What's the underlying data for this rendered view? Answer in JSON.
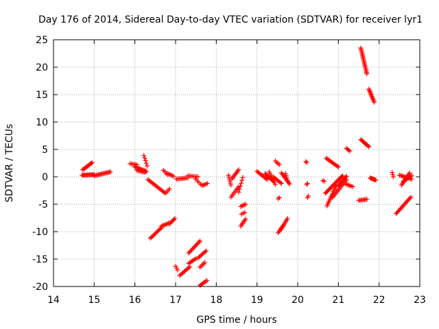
{
  "chart_data": {
    "type": "scatter",
    "title": "Day 176 of 2014, Sidereal Day-to-day VTEC variation (SDTVAR) for receiver lyr1",
    "xlabel": "GPS time / hours",
    "ylabel": "SDTVAR / TECUs",
    "xlim": [
      14,
      23
    ],
    "ylim": [
      -20,
      25
    ],
    "xticks": [
      14,
      15,
      16,
      17,
      18,
      19,
      20,
      21,
      22,
      23
    ],
    "yticks": [
      -20,
      -15,
      -10,
      -5,
      0,
      5,
      10,
      15,
      20,
      25
    ],
    "grid": true,
    "marker": "+",
    "color": "#ff0000",
    "segments": [
      {
        "start": [
          14.72,
          1.3
        ],
        "end": [
          14.95,
          2.6
        ],
        "n": 12
      },
      {
        "start": [
          14.7,
          0.3
        ],
        "end": [
          15.0,
          0.4
        ],
        "n": 14
      },
      {
        "start": [
          15.0,
          0.2
        ],
        "end": [
          15.4,
          0.9
        ],
        "n": 16
      },
      {
        "start": [
          15.88,
          2.4
        ],
        "end": [
          16.05,
          2.2
        ],
        "n": 6
      },
      {
        "start": [
          16.0,
          1.8
        ],
        "end": [
          16.28,
          1.0
        ],
        "n": 12
      },
      {
        "start": [
          16.22,
          3.9
        ],
        "end": [
          16.3,
          2.0
        ],
        "n": 5
      },
      {
        "start": [
          16.05,
          1.2
        ],
        "end": [
          16.25,
          0.8
        ],
        "n": 8
      },
      {
        "start": [
          16.32,
          -0.5
        ],
        "end": [
          16.75,
          -3.0
        ],
        "n": 16
      },
      {
        "start": [
          16.75,
          -3.0
        ],
        "end": [
          16.85,
          -2.2
        ],
        "n": 4
      },
      {
        "start": [
          16.7,
          1.2
        ],
        "end": [
          16.8,
          0.4
        ],
        "n": 4
      },
      {
        "start": [
          16.8,
          0.6
        ],
        "end": [
          16.95,
          0.1
        ],
        "n": 6
      },
      {
        "start": [
          16.38,
          -11.2
        ],
        "end": [
          16.65,
          -9.3
        ],
        "n": 12
      },
      {
        "start": [
          16.65,
          -9.0
        ],
        "end": [
          16.85,
          -8.4
        ],
        "n": 8
      },
      {
        "start": [
          16.85,
          -8.6
        ],
        "end": [
          16.98,
          -7.6
        ],
        "n": 6
      },
      {
        "start": [
          17.0,
          -16.3
        ],
        "end": [
          17.05,
          -17.0
        ],
        "n": 3
      },
      {
        "start": [
          17.1,
          -18.0
        ],
        "end": [
          17.35,
          -16.4
        ],
        "n": 10
      },
      {
        "start": [
          17.32,
          -13.9
        ],
        "end": [
          17.6,
          -11.7
        ],
        "n": 12
      },
      {
        "start": [
          17.32,
          -15.8
        ],
        "end": [
          17.5,
          -14.9
        ],
        "n": 7
      },
      {
        "start": [
          17.55,
          -14.8
        ],
        "end": [
          17.75,
          -13.5
        ],
        "n": 8
      },
      {
        "start": [
          17.6,
          -16.5
        ],
        "end": [
          17.72,
          -15.6
        ],
        "n": 5
      },
      {
        "start": [
          17.6,
          -19.8
        ],
        "end": [
          17.77,
          -18.9
        ],
        "n": 7
      },
      {
        "start": [
          17.02,
          -0.4
        ],
        "end": [
          17.3,
          -0.2
        ],
        "n": 10
      },
      {
        "start": [
          17.3,
          0.2
        ],
        "end": [
          17.55,
          0.0
        ],
        "n": 8
      },
      {
        "start": [
          17.5,
          -0.5
        ],
        "end": [
          17.65,
          -1.6
        ],
        "n": 5
      },
      {
        "start": [
          17.65,
          -1.6
        ],
        "end": [
          17.78,
          -1.2
        ],
        "n": 5
      },
      {
        "start": [
          18.3,
          0.3
        ],
        "end": [
          18.36,
          -1.5
        ],
        "n": 6
      },
      {
        "start": [
          18.38,
          -0.4
        ],
        "end": [
          18.55,
          1.3
        ],
        "n": 8
      },
      {
        "start": [
          18.36,
          -3.7
        ],
        "end": [
          18.55,
          -1.8
        ],
        "n": 8
      },
      {
        "start": [
          18.55,
          -2.8
        ],
        "end": [
          18.65,
          -0.1
        ],
        "n": 6
      },
      {
        "start": [
          18.6,
          -5.4
        ],
        "end": [
          18.72,
          -5.0
        ],
        "n": 5
      },
      {
        "start": [
          18.6,
          -9.0
        ],
        "end": [
          18.72,
          -7.7
        ],
        "n": 6
      },
      {
        "start": [
          18.62,
          -6.8
        ],
        "end": [
          18.7,
          -6.5
        ],
        "n": 3
      },
      {
        "start": [
          19.0,
          1.0
        ],
        "end": [
          19.25,
          -0.5
        ],
        "n": 10
      },
      {
        "start": [
          19.2,
          0.6
        ],
        "end": [
          19.4,
          -0.8
        ],
        "n": 10
      },
      {
        "start": [
          19.3,
          0.9
        ],
        "end": [
          19.45,
          -1.4
        ],
        "n": 8
      },
      {
        "start": [
          19.4,
          0.0
        ],
        "end": [
          19.6,
          -1.2
        ],
        "n": 8
      },
      {
        "start": [
          19.45,
          2.9
        ],
        "end": [
          19.55,
          2.2
        ],
        "n": 4
      },
      {
        "start": [
          19.52,
          -4.0
        ],
        "end": [
          19.55,
          -3.8
        ],
        "n": 2
      },
      {
        "start": [
          19.52,
          -10.2
        ],
        "end": [
          19.63,
          -9.0
        ],
        "n": 6
      },
      {
        "start": [
          19.6,
          -9.5
        ],
        "end": [
          19.75,
          -7.6
        ],
        "n": 8
      },
      {
        "start": [
          19.6,
          0.7
        ],
        "end": [
          19.8,
          -1.3
        ],
        "n": 10
      },
      {
        "start": [
          19.7,
          0.6
        ],
        "end": [
          19.75,
          -0.6
        ],
        "n": 4
      },
      {
        "start": [
          20.2,
          2.8
        ],
        "end": [
          20.22,
          2.6
        ],
        "n": 2
      },
      {
        "start": [
          20.22,
          -1.4
        ],
        "end": [
          20.24,
          -1.2
        ],
        "n": 2
      },
      {
        "start": [
          20.24,
          -3.8
        ],
        "end": [
          20.26,
          -3.5
        ],
        "n": 2
      },
      {
        "start": [
          20.62,
          -0.7
        ],
        "end": [
          20.65,
          -0.8
        ],
        "n": 2
      },
      {
        "start": [
          20.7,
          3.4
        ],
        "end": [
          21.0,
          1.8
        ],
        "n": 12
      },
      {
        "start": [
          20.68,
          -3.0
        ],
        "end": [
          21.1,
          0.2
        ],
        "n": 20
      },
      {
        "start": [
          20.72,
          -5.3
        ],
        "end": [
          20.95,
          -1.5
        ],
        "n": 14
      },
      {
        "start": [
          20.85,
          -3.8
        ],
        "end": [
          21.2,
          -0.5
        ],
        "n": 14
      },
      {
        "start": [
          21.0,
          -1.6
        ],
        "end": [
          21.2,
          0.1
        ],
        "n": 10
      },
      {
        "start": [
          21.18,
          -1.3
        ],
        "end": [
          21.35,
          -1.8
        ],
        "n": 6
      },
      {
        "start": [
          21.2,
          5.2
        ],
        "end": [
          21.28,
          4.7
        ],
        "n": 4
      },
      {
        "start": [
          21.55,
          6.8
        ],
        "end": [
          21.75,
          5.5
        ],
        "n": 10
      },
      {
        "start": [
          21.55,
          23.5
        ],
        "end": [
          21.7,
          18.8
        ],
        "n": 20
      },
      {
        "start": [
          21.75,
          16.0
        ],
        "end": [
          21.88,
          13.6
        ],
        "n": 12
      },
      {
        "start": [
          21.5,
          -4.3
        ],
        "end": [
          21.7,
          -4.1
        ],
        "n": 8
      },
      {
        "start": [
          21.78,
          -0.2
        ],
        "end": [
          21.92,
          -0.6
        ],
        "n": 8
      },
      {
        "start": [
          22.32,
          0.8
        ],
        "end": [
          22.35,
          0.0
        ],
        "n": 3
      },
      {
        "start": [
          22.42,
          -6.7
        ],
        "end": [
          22.78,
          -3.7
        ],
        "n": 16
      },
      {
        "start": [
          22.5,
          0.3
        ],
        "end": [
          22.8,
          -0.4
        ],
        "n": 12
      },
      {
        "start": [
          22.55,
          -1.5
        ],
        "end": [
          22.75,
          0.7
        ],
        "n": 10
      },
      {
        "start": [
          22.6,
          -0.8
        ],
        "end": [
          22.8,
          0.2
        ],
        "n": 8
      }
    ]
  }
}
